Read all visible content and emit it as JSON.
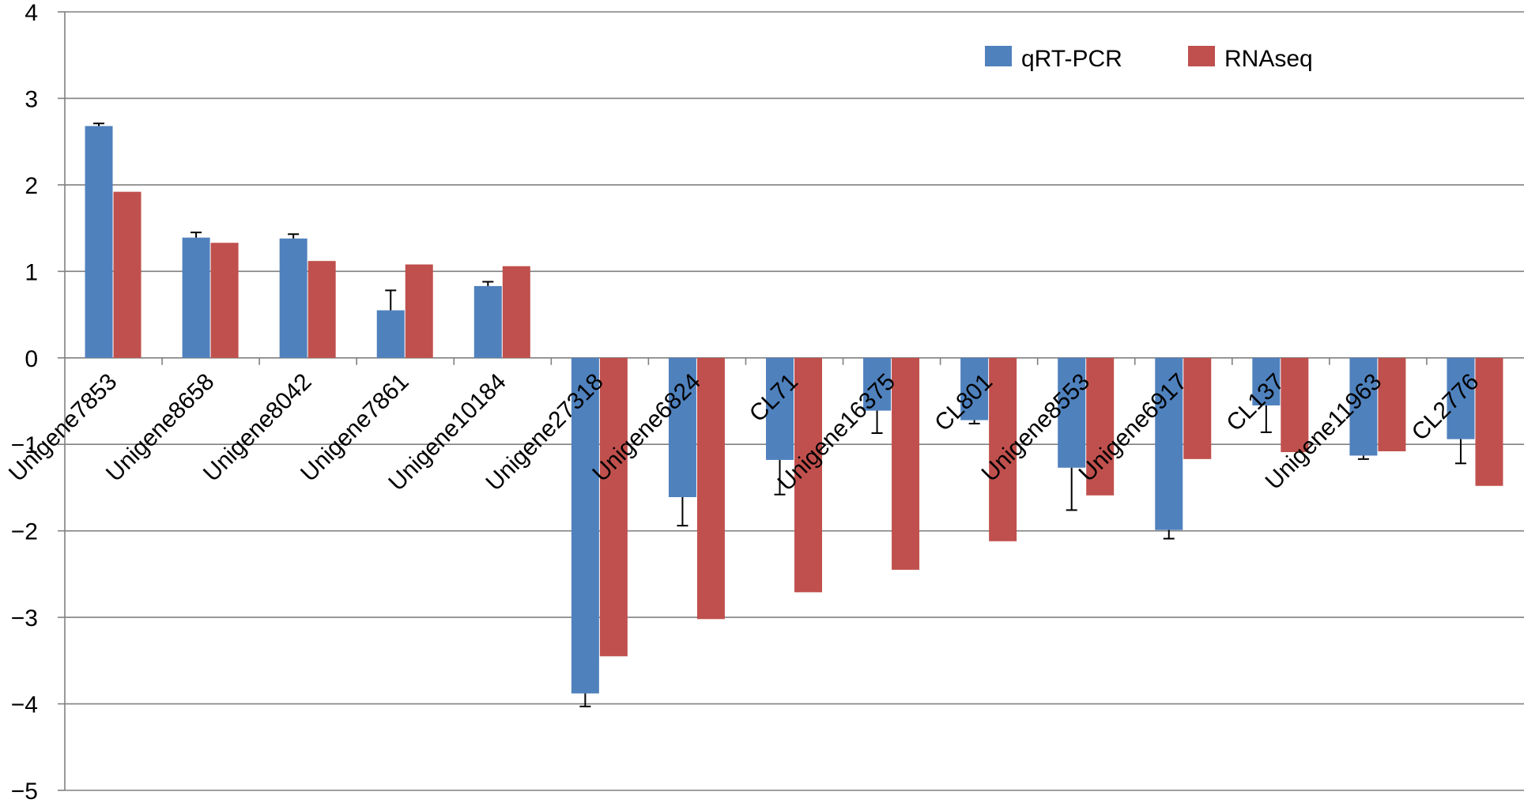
{
  "chart_data": {
    "type": "bar",
    "title": "",
    "xlabel": "",
    "ylabel": "",
    "ylim": [
      -5,
      4
    ],
    "yticks": [
      4,
      3,
      2,
      1,
      0,
      -1,
      -2,
      -3,
      -4,
      -5
    ],
    "ytick_labels": [
      "4",
      "3",
      "2",
      "1",
      "0",
      "−1",
      "−2",
      "−3",
      "−4",
      "−5"
    ],
    "grid": true,
    "legend_position": "top-right",
    "categories": [
      "Unigene7853",
      "Unigene8658",
      "Unigene8042",
      "Unigene7861",
      "Unigene10184",
      "Unigene27318",
      "Unigene6824",
      "CL71",
      "Unigene16375",
      "CL801",
      "Unigene8553",
      "Unigene6917",
      "CL137",
      "Unigene11963",
      "CL2776"
    ],
    "series": [
      {
        "name": "qRT-PCR",
        "color": "#4f81bd",
        "values": [
          2.68,
          1.39,
          1.38,
          0.55,
          0.83,
          -3.88,
          -1.61,
          -1.18,
          -0.61,
          -0.72,
          -1.27,
          -1.99,
          -0.55,
          -1.13,
          -0.94
        ],
        "errors": [
          0.03,
          0.06,
          0.05,
          0.23,
          0.05,
          0.15,
          0.33,
          0.4,
          0.26,
          0.04,
          0.49,
          0.1,
          0.31,
          0.04,
          0.28
        ]
      },
      {
        "name": "RNAseq",
        "color": "#c0504d",
        "values": [
          1.92,
          1.33,
          1.12,
          1.08,
          1.06,
          -3.45,
          -3.02,
          -2.71,
          -2.45,
          -2.12,
          -1.59,
          -1.17,
          -1.09,
          -1.08,
          -1.48
        ]
      }
    ]
  }
}
